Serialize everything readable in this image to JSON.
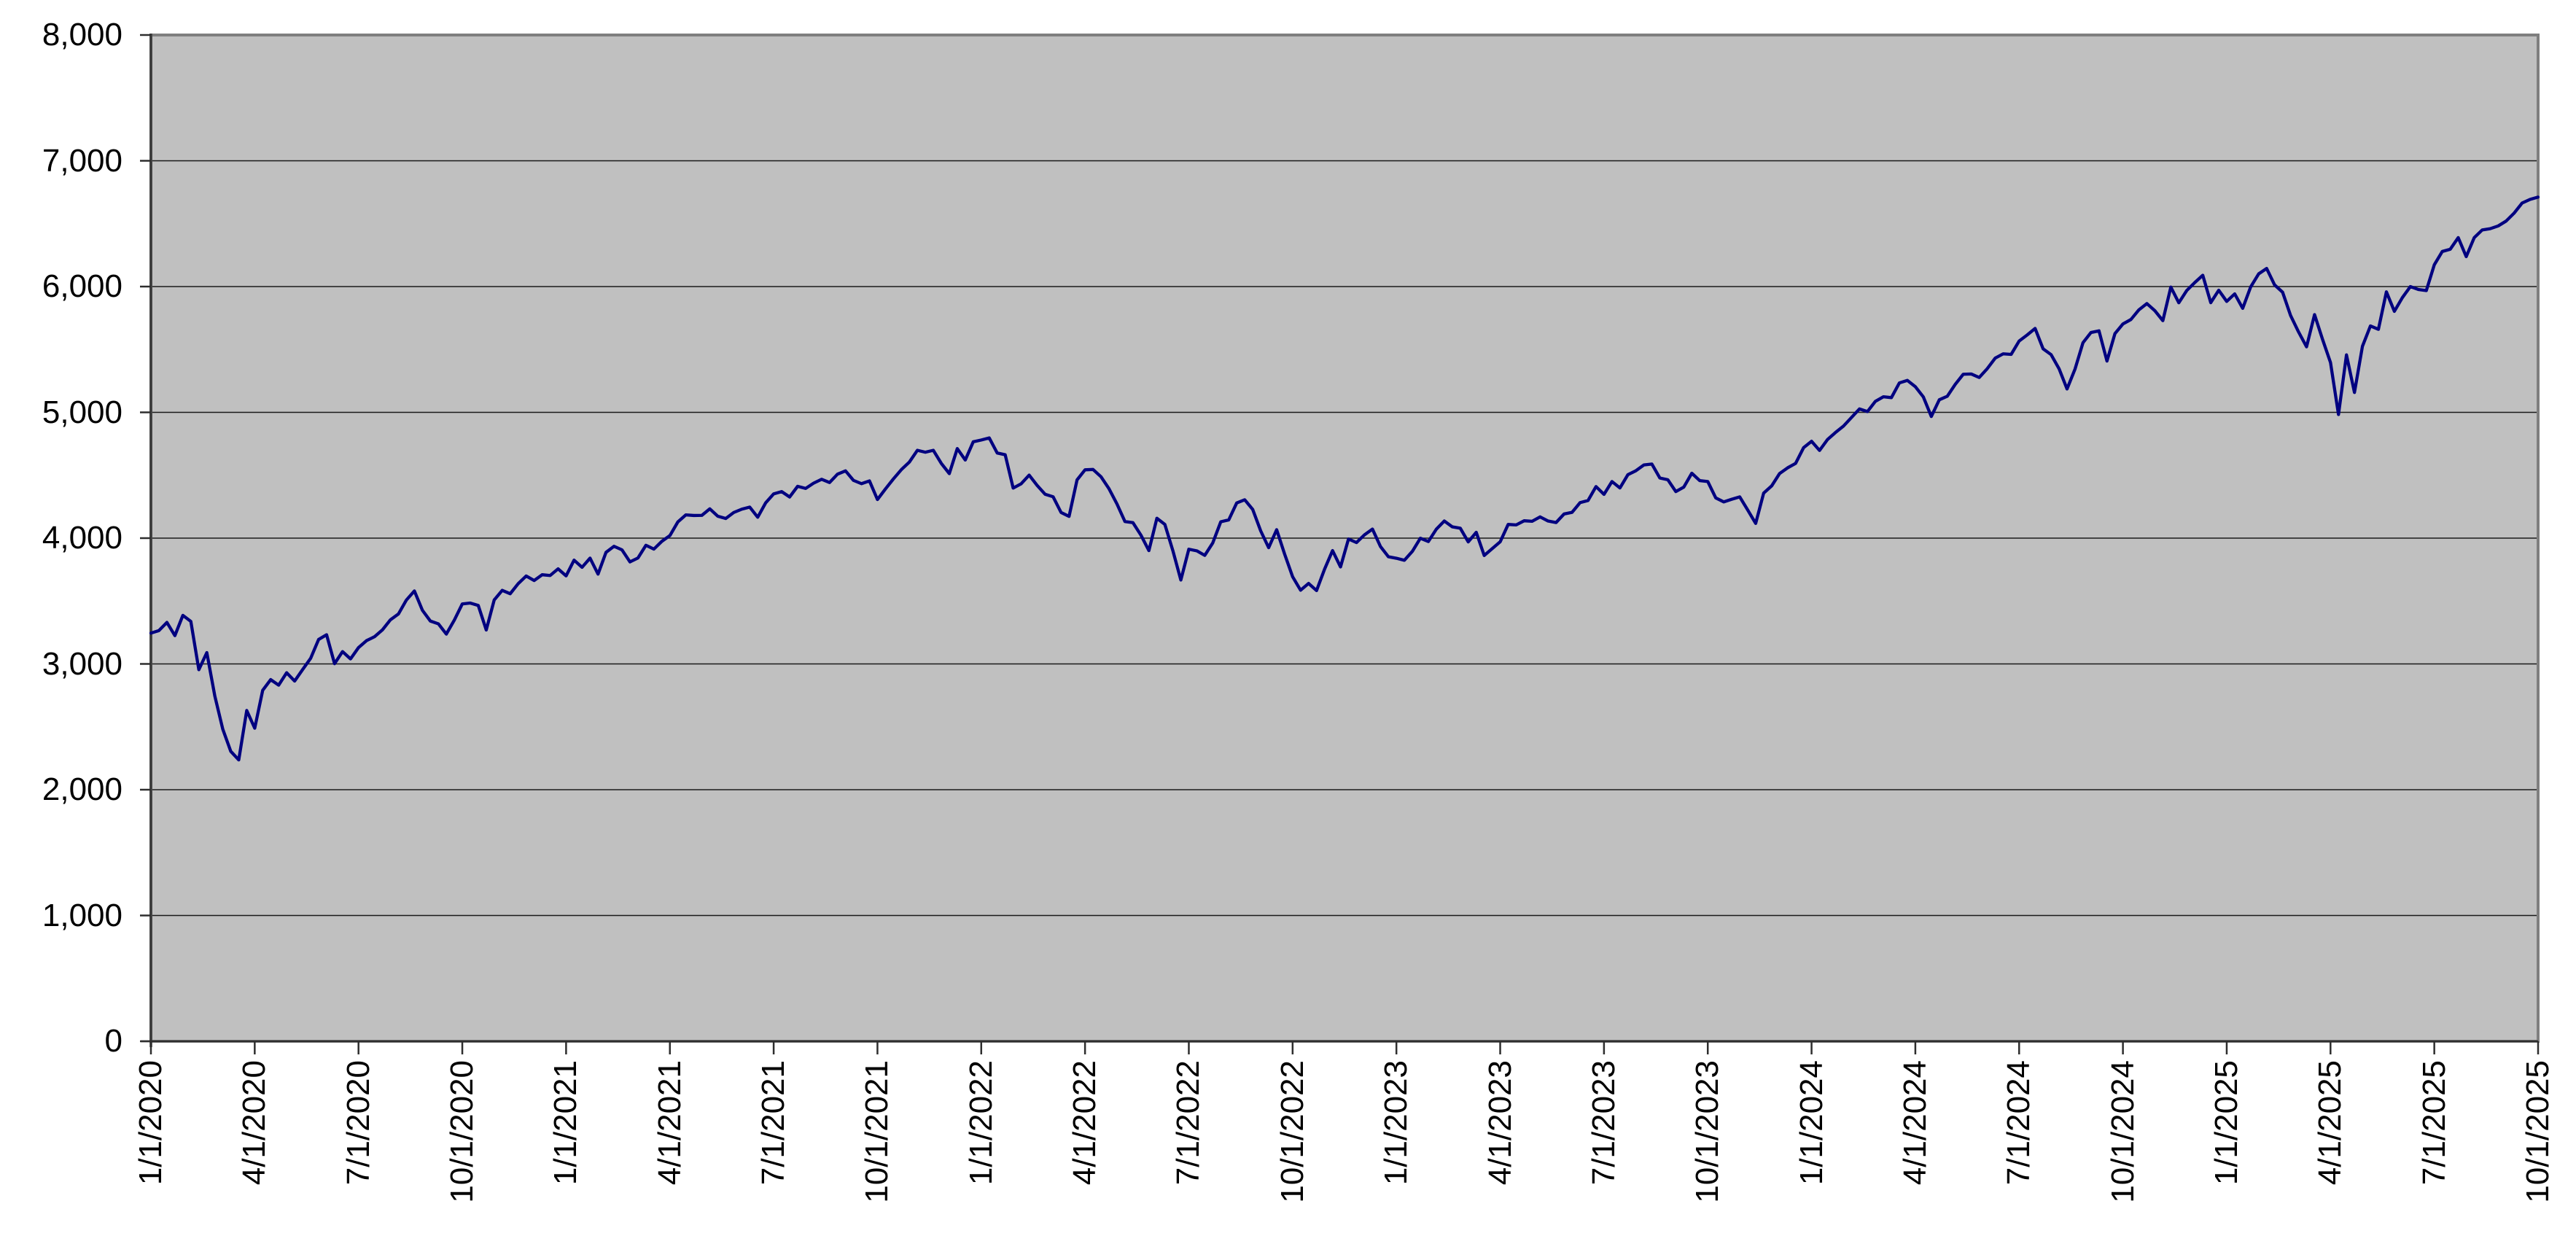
{
  "chart_data": {
    "type": "line",
    "title": "",
    "xlabel": "",
    "ylabel": "",
    "legend": "none",
    "grid": "horizontal-only",
    "x_axis": {
      "start": "1/1/2020",
      "end": "10/1/2025",
      "tick_interval": "3 months",
      "label_rotation_deg": 90,
      "tick_labels": [
        "1/1/2020",
        "4/1/2020",
        "7/1/2020",
        "10/1/2020",
        "1/1/2021",
        "4/1/2021",
        "7/1/2021",
        "10/1/2021",
        "1/1/2022",
        "4/1/2022",
        "7/1/2022",
        "10/1/2022",
        "1/1/2023",
        "4/1/2023",
        "7/1/2023",
        "10/1/2023",
        "1/1/2024",
        "4/1/2024",
        "7/1/2024",
        "10/1/2024",
        "1/1/2025",
        "4/1/2025",
        "7/1/2025",
        "10/1/2025"
      ]
    },
    "y_axis": {
      "min": 0,
      "max": 8000,
      "tick_step": 1000,
      "ticks": [
        0,
        1000,
        2000,
        3000,
        4000,
        5000,
        6000,
        7000,
        8000
      ],
      "tick_labels": [
        "0",
        "1,000",
        "2,000",
        "3,000",
        "4,000",
        "5,000",
        "6,000",
        "7,000",
        "8,000"
      ]
    },
    "ylim": [
      0,
      8000
    ],
    "series": [
      {
        "name": "",
        "color": "#000080",
        "sampling": "approx. weekly closes, evenly spaced from 1/1/2020 to 10/1/2025",
        "values": [
          3245,
          3265,
          3330,
          3225,
          3386,
          3338,
          2954,
          3090,
          2746,
          2481,
          2305,
          2237,
          2630,
          2489,
          2790,
          2875,
          2831,
          2930,
          2864,
          2955,
          3044,
          3194,
          3232,
          3002,
          3098,
          3040,
          3130,
          3185,
          3216,
          3271,
          3351,
          3397,
          3508,
          3580,
          3427,
          3341,
          3319,
          3237,
          3348,
          3477,
          3484,
          3465,
          3270,
          3509,
          3585,
          3558,
          3638,
          3699,
          3663,
          3709,
          3703,
          3756,
          3700,
          3825,
          3768,
          3841,
          3714,
          3887,
          3935,
          3907,
          3811,
          3842,
          3943,
          3913,
          3975,
          4020,
          4129,
          4185,
          4180,
          4181,
          4233,
          4174,
          4156,
          4204,
          4230,
          4247,
          4166,
          4281,
          4352,
          4370,
          4327,
          4412,
          4395,
          4437,
          4468,
          4442,
          4509,
          4535,
          4459,
          4433,
          4455,
          4307,
          4391,
          4471,
          4545,
          4605,
          4698,
          4683,
          4698,
          4594,
          4513,
          4712,
          4621,
          4766,
          4780,
          4797,
          4677,
          4663,
          4398,
          4432,
          4501,
          4419,
          4349,
          4329,
          4204,
          4173,
          4463,
          4543,
          4546,
          4488,
          4393,
          4272,
          4132,
          4123,
          4024,
          3901,
          4158,
          4109,
          3901,
          3667,
          3912,
          3899,
          3863,
          3962,
          4130,
          4145,
          4280,
          4305,
          4228,
          4058,
          3924,
          4067,
          3873,
          3693,
          3586,
          3640,
          3583,
          3753,
          3901,
          3771,
          3993,
          3965,
          4026,
          4072,
          3934,
          3852,
          3840,
          3824,
          3895,
          3999,
          3973,
          4071,
          4136,
          4090,
          4079,
          3970,
          4046,
          3862,
          3917,
          3971,
          4109,
          4105,
          4138,
          4134,
          4169,
          4136,
          4124,
          4192,
          4205,
          4282,
          4299,
          4410,
          4348,
          4450,
          4399,
          4505,
          4536,
          4582,
          4589,
          4478,
          4464,
          4370,
          4406,
          4516,
          4457,
          4450,
          4320,
          4288,
          4309,
          4328,
          4224,
          4117,
          4358,
          4415,
          4514,
          4559,
          4594,
          4719,
          4770,
          4697,
          4784,
          4840,
          4891,
          4959,
          5027,
          5006,
          5088,
          5124,
          5117,
          5234,
          5254,
          5204,
          5123,
          4967,
          5100,
          5128,
          5223,
          5303,
          5305,
          5277,
          5347,
          5431,
          5465,
          5461,
          5567,
          5615,
          5667,
          5505,
          5459,
          5347,
          5186,
          5344,
          5554,
          5635,
          5648,
          5408,
          5626,
          5703,
          5738,
          5815,
          5865,
          5808,
          5729,
          5996,
          5871,
          5969,
          6032,
          6090,
          5872,
          5971,
          5882,
          5942,
          5827,
          5997,
          6101,
          6144,
          6013,
          5955,
          5770,
          5639,
          5521,
          5777,
          5581,
          5396,
          4983,
          5457,
          5158,
          5525,
          5687,
          5660,
          5958,
          5803,
          5912,
          6000,
          5977,
          5968,
          6173,
          6279,
          6297,
          6389,
          6238,
          6389,
          6450,
          6460,
          6482,
          6521,
          6584,
          6664,
          6693,
          6711
        ]
      }
    ]
  },
  "style": {
    "page_background": "#ffffff",
    "plot_background": "#c0c0c0",
    "frame_color": "#7f7f7f",
    "gridline_color": "#1a1a1a",
    "axis_color": "#2e2e2e",
    "tick_color": "#2e2e2e",
    "label_color": "#000000",
    "line_color": "#000080",
    "line_width": 4.3
  }
}
